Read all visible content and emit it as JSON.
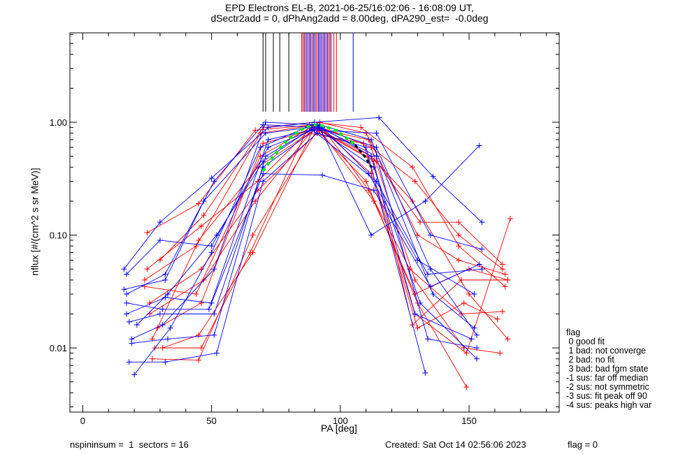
{
  "chart_data": {
    "type": "line",
    "title": [
      "EPD Electrons EL-B, 2021-06-25/16:02:06 - 16:08:09 UT,",
      "dSectr2add = 0, dPhAng2add = 8.00deg, dPA290_est=  -0.0deg"
    ],
    "xlabel": "PA [deg]",
    "ylabel": "nflux [#/(cm^2 s sr MeV)]",
    "xlim": [
      -5,
      185
    ],
    "ylim": [
      0.0027,
      6.2
    ],
    "yscale": "log",
    "xticks": [
      "0",
      "50",
      "100",
      "150"
    ],
    "yticks": [
      "0.01",
      "0.10",
      "1.00"
    ],
    "colors": {
      "red": "#ff0000",
      "blue": "#0000ff",
      "fit": "#00ee00",
      "fit2": "#000000"
    },
    "series_red": [
      [
        [
          25,
          0.105
        ],
        [
          45,
          0.19
        ],
        [
          67,
          0.85
        ],
        [
          90,
          0.95
        ],
        [
          112,
          0.6
        ],
        [
          129,
          0.3
        ],
        [
          146,
          0.1
        ],
        [
          163,
          0.05
        ]
      ],
      [
        [
          25,
          0.05
        ],
        [
          46,
          0.12
        ],
        [
          68,
          0.3
        ],
        [
          89,
          0.9
        ],
        [
          111,
          0.7
        ],
        [
          129,
          0.04
        ],
        [
          148,
          0.01
        ],
        [
          162,
          0.009
        ]
      ],
      [
        [
          27,
          0.008
        ],
        [
          45,
          0.0078
        ],
        [
          66,
          0.1
        ],
        [
          91,
          0.85
        ],
        [
          110,
          0.3
        ],
        [
          130,
          0.025
        ],
        [
          149,
          0.0045
        ]
      ],
      [
        [
          28,
          0.01
        ],
        [
          46,
          0.01
        ],
        [
          65,
          0.07
        ],
        [
          88,
          0.95
        ],
        [
          113,
          0.45
        ],
        [
          128,
          0.016
        ],
        [
          147,
          0.04
        ],
        [
          165,
          0.04
        ]
      ],
      [
        [
          24,
          0.035
        ],
        [
          44,
          0.03
        ],
        [
          69,
          0.5
        ],
        [
          92,
          1.0
        ],
        [
          110,
          0.8
        ],
        [
          130,
          0.1
        ],
        [
          146,
          0.06
        ],
        [
          164,
          0.045
        ]
      ],
      [
        [
          26,
          0.02
        ],
        [
          47,
          0.04
        ],
        [
          67,
          0.2
        ],
        [
          90,
          0.9
        ],
        [
          112,
          0.5
        ],
        [
          128,
          0.2
        ],
        [
          150,
          0.03
        ],
        [
          165,
          0.012
        ]
      ],
      [
        [
          29,
          0.015
        ],
        [
          46,
          0.025
        ],
        [
          70,
          0.65
        ],
        [
          93,
          0.9
        ],
        [
          111,
          0.25
        ],
        [
          127,
          0.05
        ],
        [
          147,
          0.02
        ],
        [
          163,
          0.021
        ]
      ],
      [
        [
          27,
          0.012
        ],
        [
          45,
          0.09
        ],
        [
          68,
          0.4
        ],
        [
          88,
          0.8
        ],
        [
          109,
          0.65
        ],
        [
          129,
          0.02
        ],
        [
          149,
          0.009
        ],
        [
          166,
          0.14
        ]
      ],
      [
        [
          31,
          0.01
        ],
        [
          45,
          0.013
        ],
        [
          66,
          0.07
        ],
        [
          90,
          0.9
        ],
        [
          114,
          0.45
        ],
        [
          131,
          0.13
        ],
        [
          146,
          0.13
        ],
        [
          163,
          0.055
        ]
      ],
      [
        [
          24,
          0.04
        ],
        [
          44,
          0.08
        ],
        [
          69,
          0.8
        ],
        [
          91,
          0.95
        ],
        [
          112,
          0.35
        ],
        [
          130,
          0.015
        ],
        [
          148,
          0.025
        ],
        [
          161,
          0.018
        ]
      ],
      [
        [
          30,
          0.06
        ],
        [
          47,
          0.15
        ],
        [
          70,
          0.9
        ],
        [
          90,
          1.0
        ],
        [
          108,
          0.9
        ],
        [
          128,
          0.4
        ],
        [
          146,
          0.08
        ],
        [
          164,
          0.035
        ]
      ],
      [
        [
          26,
          0.025
        ],
        [
          46,
          0.05
        ],
        [
          68,
          0.25
        ],
        [
          92,
          0.85
        ],
        [
          113,
          0.2
        ],
        [
          129,
          0.03
        ],
        [
          150,
          0.05
        ],
        [
          165,
          0.04
        ]
      ]
    ],
    "series_blue": [
      [
        [
          17,
          0.03
        ],
        [
          32,
          0.045
        ],
        [
          51,
          0.3
        ],
        [
          70,
          0.95
        ],
        [
          91,
          0.9
        ],
        [
          114,
          0.6
        ],
        [
          135,
          0.05
        ],
        [
          153,
          0.013
        ]
      ],
      [
        [
          19,
          0.011
        ],
        [
          33,
          0.012
        ],
        [
          51,
          0.013
        ],
        [
          71,
          0.5
        ],
        [
          92,
          0.95
        ],
        [
          112,
          0.7
        ],
        [
          136,
          0.03
        ],
        [
          152,
          0.015
        ]
      ],
      [
        [
          16,
          0.05
        ],
        [
          30,
          0.13
        ],
        [
          50,
          0.32
        ],
        [
          72,
          0.9
        ],
        [
          90,
          1.0
        ],
        [
          115,
          1.1
        ],
        [
          136,
          0.33
        ],
        [
          155,
          0.13
        ]
      ],
      [
        [
          18,
          0.0075
        ],
        [
          32,
          0.0075
        ],
        [
          52,
          0.009
        ],
        [
          70,
          0.3
        ],
        [
          91,
          0.8
        ],
        [
          110,
          0.6
        ],
        [
          133,
          0.006
        ]
      ],
      [
        [
          20,
          0.0058
        ],
        [
          34,
          0.015
        ],
        [
          50,
          0.07
        ],
        [
          69,
          0.6
        ],
        [
          89,
          0.95
        ],
        [
          113,
          0.4
        ],
        [
          131,
          0.025
        ],
        [
          153,
          0.008
        ]
      ],
      [
        [
          17,
          0.025
        ],
        [
          31,
          0.022
        ],
        [
          49,
          0.022
        ],
        [
          72,
          0.7
        ],
        [
          93,
          0.9
        ],
        [
          111,
          0.35
        ],
        [
          130,
          0.06
        ],
        [
          152,
          0.03
        ]
      ],
      [
        [
          18,
          0.017
        ],
        [
          30,
          0.02
        ],
        [
          51,
          0.02
        ],
        [
          70,
          0.4
        ],
        [
          90,
          0.85
        ],
        [
          114,
          0.8
        ],
        [
          135,
          0.1
        ],
        [
          155,
          0.075
        ]
      ],
      [
        [
          16,
          0.033
        ],
        [
          32,
          0.04
        ],
        [
          47,
          0.2
        ],
        [
          71,
          0.8
        ],
        [
          88,
          0.9
        ],
        [
          114,
          0.3
        ],
        [
          134,
          0.045
        ],
        [
          155,
          0.05
        ]
      ],
      [
        [
          21,
          0.016
        ],
        [
          33,
          0.03
        ],
        [
          52,
          0.1
        ],
        [
          70,
          0.45
        ],
        [
          91,
          0.95
        ],
        [
          112,
          0.5
        ],
        [
          129,
          0.02
        ],
        [
          151,
          0.012
        ]
      ],
      [
        [
          17,
          0.045
        ],
        [
          30,
          0.09
        ],
        [
          50,
          0.08
        ],
        [
          72,
          0.6
        ],
        [
          92,
          0.9
        ],
        [
          112,
          0.1
        ],
        [
          133,
          0.2
        ],
        [
          154,
          0.62
        ]
      ],
      [
        [
          19,
          0.012
        ],
        [
          31,
          0.016
        ],
        [
          51,
          0.05
        ],
        [
          71,
          1.0
        ],
        [
          90,
          0.95
        ],
        [
          114,
          0.5
        ],
        [
          134,
          0.012
        ],
        [
          153,
          0.01
        ]
      ],
      [
        [
          17,
          0.02
        ],
        [
          32,
          0.028
        ],
        [
          50,
          0.025
        ],
        [
          70,
          0.35
        ],
        [
          93,
          0.34
        ],
        [
          113,
          0.25
        ],
        [
          135,
          0.035
        ],
        [
          154,
          0.055
        ]
      ]
    ],
    "fit_curve": [
      [
        70,
        0.37
      ],
      [
        74,
        0.5
      ],
      [
        78,
        0.64
      ],
      [
        82,
        0.78
      ],
      [
        86,
        0.89
      ],
      [
        90,
        0.95
      ],
      [
        94,
        0.92
      ],
      [
        98,
        0.85
      ],
      [
        102,
        0.74
      ],
      [
        106,
        0.62
      ]
    ],
    "fit_curve2": [
      [
        102,
        0.74
      ],
      [
        106,
        0.62
      ],
      [
        110,
        0.48
      ],
      [
        112,
        0.4
      ]
    ],
    "peak_lines": {
      "black": [
        70,
        71,
        74,
        76.5,
        80,
        90
      ],
      "red": [
        85,
        85.5,
        86.5,
        87.5,
        89,
        90.5,
        91,
        93,
        94.5,
        95.5,
        96.5,
        97.5,
        98.5
      ],
      "blue": [
        86,
        87,
        88,
        88.5,
        89.5,
        90,
        91.5,
        92,
        92.5,
        93.5,
        94,
        95,
        96,
        105
      ]
    },
    "legend": {
      "title": "flag",
      "entries": [
        " 0 good fit",
        " 1 bad: not converge",
        " 2 bad: no fit",
        " 3 bad: bad fgm state",
        "-1 sus: far off median",
        "-2 sus: not symmetric",
        "-3 sus: fit peak off 90",
        "-4 sus: peaks high var"
      ]
    }
  },
  "footer": {
    "left": "nspininsum =  1  sectors = 16",
    "created": "Created: Sat Oct 14 02:56:06 2023",
    "flag": "flag = 0"
  }
}
